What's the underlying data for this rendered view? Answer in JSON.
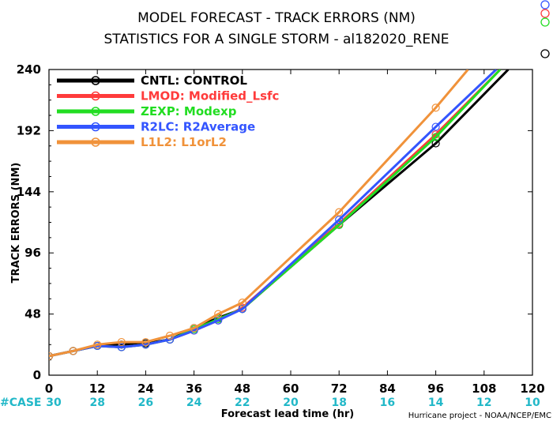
{
  "chart_data": {
    "type": "line",
    "title": "MODEL FORECAST - TRACK ERRORS (NM)",
    "subtitle": "STATISTICS FOR A SINGLE STORM - al182020_RENE",
    "xlabel": "Forecast lead time (hr)",
    "ylabel": "TRACK ERRORS (NM)",
    "xlim": [
      0,
      120
    ],
    "ylim": [
      0,
      240
    ],
    "x_ticks": [
      0,
      12,
      24,
      36,
      48,
      60,
      72,
      84,
      96,
      108,
      120
    ],
    "y_ticks": [
      0,
      48,
      96,
      144,
      192,
      240
    ],
    "grid": false,
    "legend_position": "top-left",
    "case_label": "#CASE",
    "case_counts": [
      {
        "x": 0,
        "n": "30"
      },
      {
        "x": 12,
        "n": "28"
      },
      {
        "x": 24,
        "n": "26"
      },
      {
        "x": 36,
        "n": "24"
      },
      {
        "x": 48,
        "n": "22"
      },
      {
        "x": 60,
        "n": "20"
      },
      {
        "x": 72,
        "n": "18"
      },
      {
        "x": 84,
        "n": "16"
      },
      {
        "x": 96,
        "n": "14"
      },
      {
        "x": 108,
        "n": "12"
      },
      {
        "x": 120,
        "n": "10"
      }
    ],
    "credit": "Hurricane project - NOAA/NCEP/EMC",
    "series": [
      {
        "name": "CNTL: CONTROL",
        "color": "#000000",
        "x": [
          0,
          6,
          12,
          18,
          24,
          30,
          36,
          42,
          48,
          72,
          96,
          114
        ],
        "y": [
          15,
          19,
          23,
          24,
          25,
          28,
          37,
          45,
          52,
          118,
          182,
          240
        ]
      },
      {
        "name": "LMOD: Modified_Lsfc",
        "color": "#ff3b3b",
        "x": [
          0,
          6,
          12,
          18,
          24,
          30,
          36,
          42,
          48,
          72,
          96,
          112
        ],
        "y": [
          15,
          19,
          23,
          22,
          24,
          28,
          35,
          43,
          53,
          119,
          189,
          240
        ]
      },
      {
        "name": "ZEXP: Modexp",
        "color": "#22dd22",
        "x": [
          0,
          6,
          12,
          18,
          24,
          30,
          36,
          42,
          48,
          72,
          96,
          112
        ],
        "y": [
          15,
          19,
          23,
          22,
          24,
          28,
          36,
          44,
          52,
          118,
          187,
          240
        ]
      },
      {
        "name": "R2LC: R2Average",
        "color": "#3355ff",
        "x": [
          0,
          6,
          12,
          18,
          24,
          30,
          36,
          42,
          48,
          72,
          96,
          111
        ],
        "y": [
          15,
          19,
          23,
          22,
          24,
          28,
          35,
          43,
          52,
          122,
          195,
          240
        ]
      },
      {
        "name": "L1L2: L1orL2",
        "color": "#f0923a",
        "x": [
          0,
          6,
          12,
          18,
          24,
          30,
          36,
          42,
          48,
          72,
          96,
          104
        ],
        "y": [
          15,
          19,
          24,
          26,
          26,
          31,
          37,
          48,
          57,
          128,
          210,
          240
        ]
      }
    ],
    "marker_x": [
      0,
      6,
      12,
      18,
      24,
      30,
      36,
      42,
      48,
      72,
      96
    ]
  }
}
